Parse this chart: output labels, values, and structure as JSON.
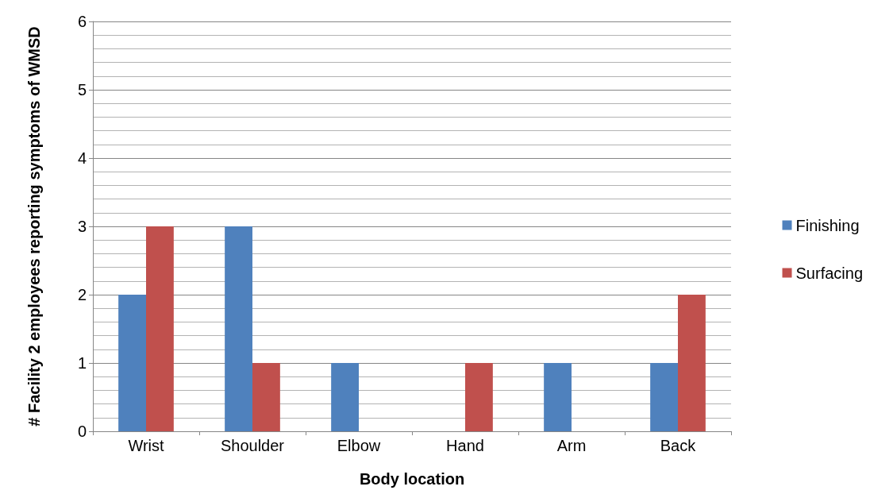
{
  "chart_data": {
    "type": "bar",
    "xlabel": "Body location",
    "ylabel": "# Facility 2 employees reporting symptoms of WMSD",
    "categories": [
      "Wrist",
      "Shoulder",
      "Elbow",
      "Hand",
      "Arm",
      "Back"
    ],
    "series": [
      {
        "name": "Finishing",
        "color": "#4f81bd",
        "values": [
          2,
          3,
          1,
          0,
          1,
          1
        ]
      },
      {
        "name": "Surfacing",
        "color": "#c0504d",
        "values": [
          3,
          1,
          0,
          1,
          0,
          2
        ]
      }
    ],
    "ylim": [
      0,
      6
    ],
    "yticks": [
      0,
      1,
      2,
      3,
      4,
      5,
      6
    ],
    "grid": true,
    "legend": "right"
  }
}
